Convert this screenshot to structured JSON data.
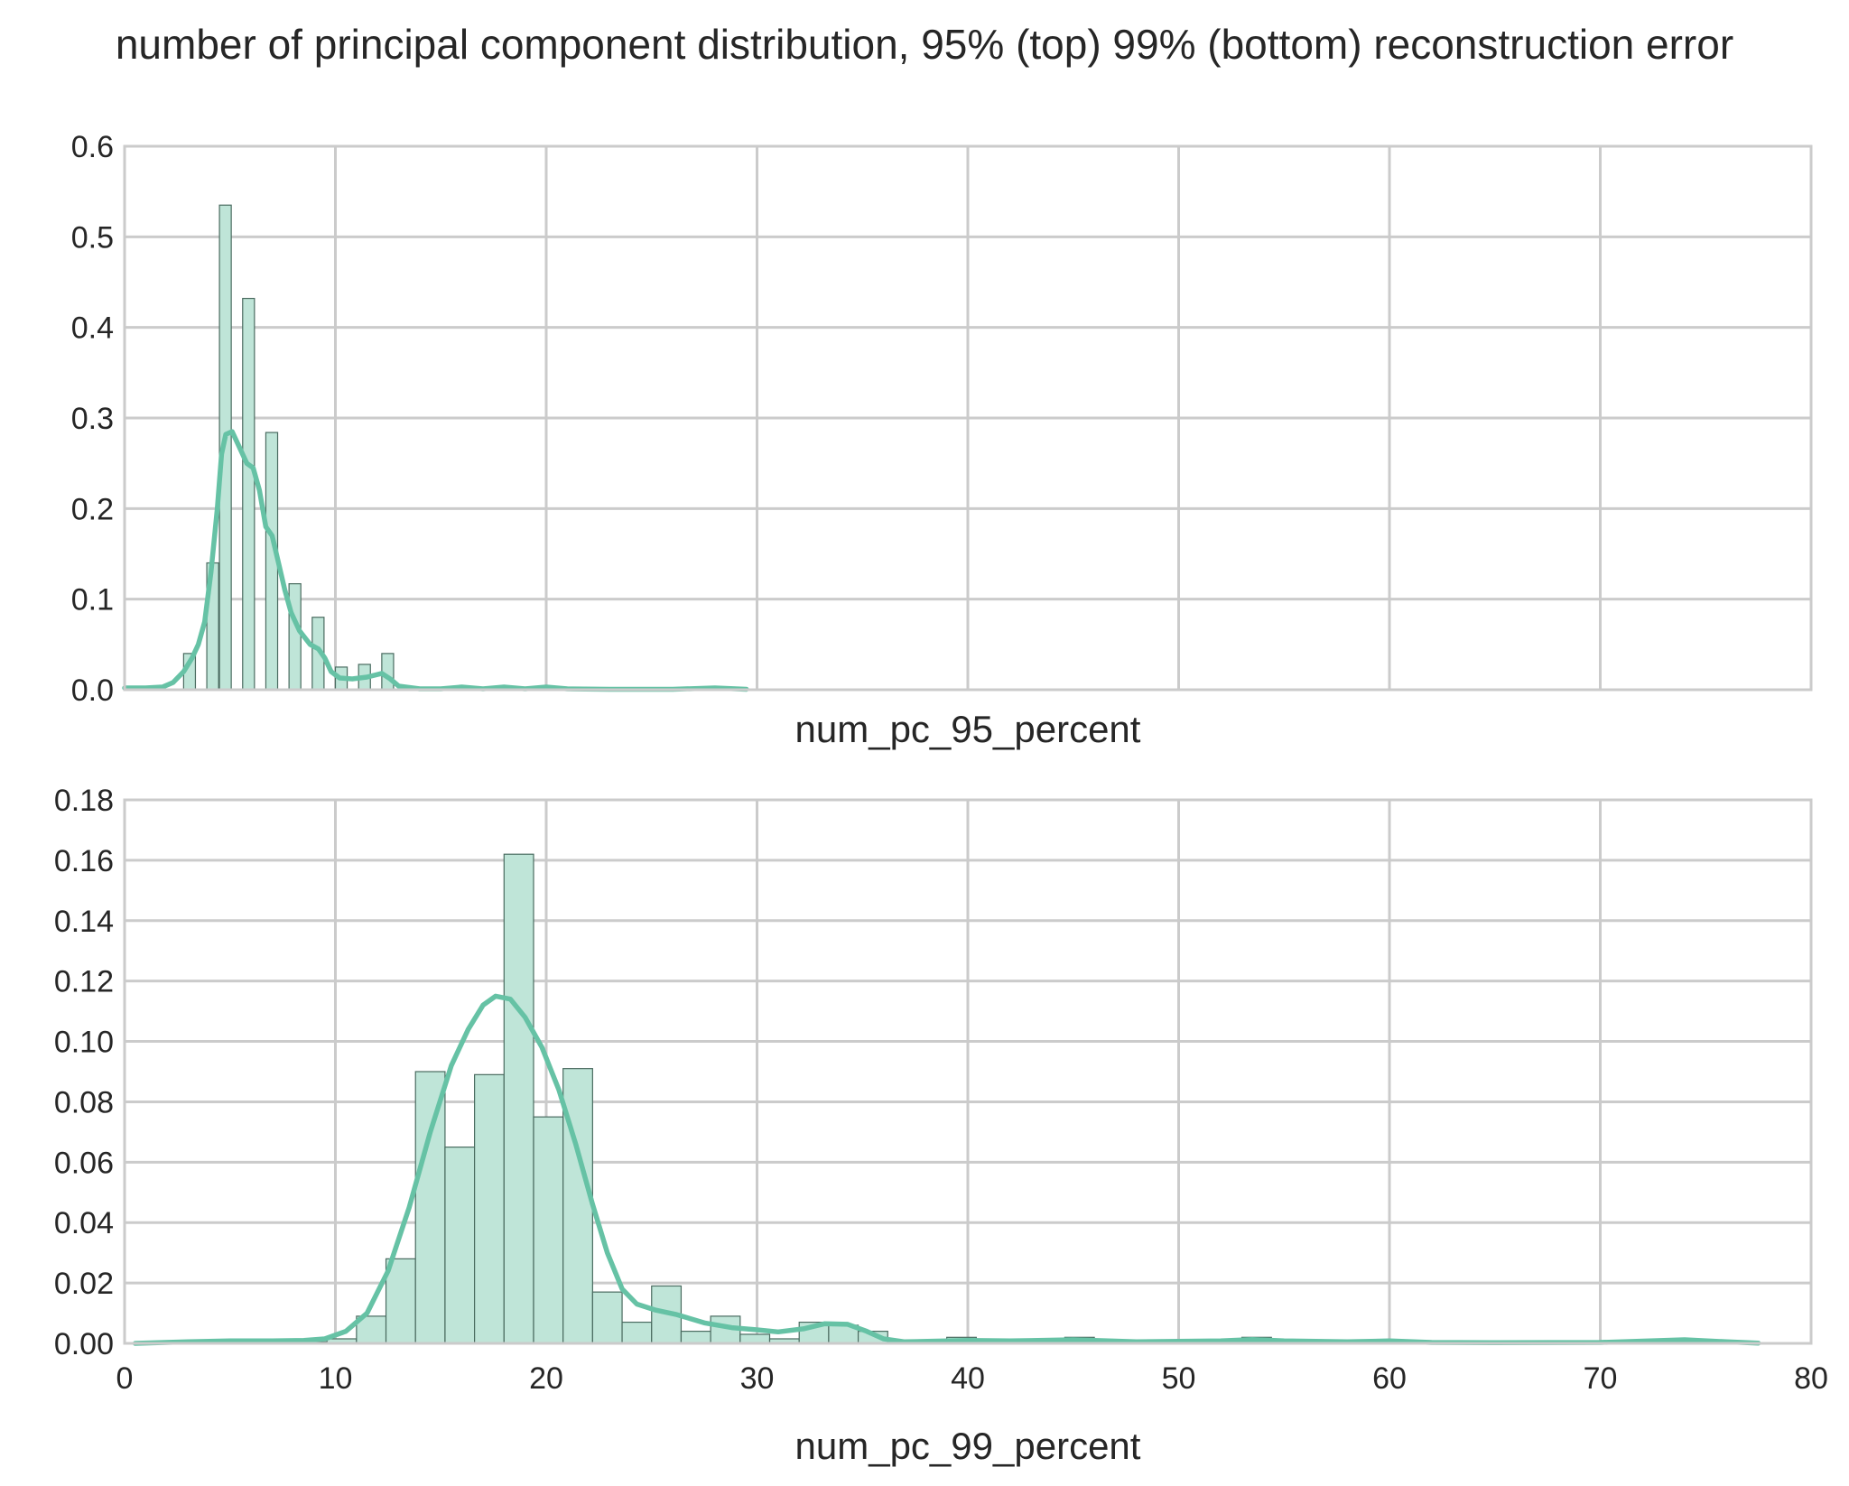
{
  "figure": {
    "title": "number of principal component distribution, 95% (top) 99% (bottom) reconstruction error"
  },
  "colors": {
    "bar_fill": "#bfe5d8",
    "bar_edge": "#4a6b60",
    "kde": "#66c2a5",
    "grid": "#cbcbcb"
  },
  "chart_data": [
    {
      "type": "bar",
      "subtype": "histogram-with-kde",
      "xlabel": "num_pc_95_percent",
      "ylabel": "",
      "xlim": [
        0,
        80
      ],
      "ylim": [
        0,
        0.6
      ],
      "xticks": [
        0,
        10,
        20,
        30,
        40,
        50,
        60,
        70,
        80
      ],
      "yticks": [
        0.0,
        0.1,
        0.2,
        0.3,
        0.4,
        0.5,
        0.6
      ],
      "ytick_labels": [
        "0.0",
        "0.1",
        "0.2",
        "0.3",
        "0.4",
        "0.5",
        "0.6"
      ],
      "show_x_tick_labels": false,
      "grid": true,
      "bin_width": 0.56,
      "bins": [
        [
          2.8,
          0.04
        ],
        [
          3.9,
          0.14
        ],
        [
          4.5,
          0.535
        ],
        [
          5.6,
          0.432
        ],
        [
          6.7,
          0.284
        ],
        [
          7.8,
          0.117
        ],
        [
          8.9,
          0.08
        ],
        [
          10.0,
          0.025
        ],
        [
          11.1,
          0.028
        ],
        [
          12.2,
          0.04
        ],
        [
          18.1,
          0.003
        ],
        [
          19.8,
          0.003
        ],
        [
          27.7,
          0.002
        ]
      ],
      "kde": [
        [
          0,
          0.002
        ],
        [
          1,
          0.002
        ],
        [
          1.8,
          0.003
        ],
        [
          2.3,
          0.008
        ],
        [
          2.8,
          0.02
        ],
        [
          3.2,
          0.035
        ],
        [
          3.5,
          0.05
        ],
        [
          3.8,
          0.075
        ],
        [
          4.1,
          0.13
        ],
        [
          4.4,
          0.2
        ],
        [
          4.6,
          0.26
        ],
        [
          4.8,
          0.282
        ],
        [
          5.1,
          0.285
        ],
        [
          5.4,
          0.27
        ],
        [
          5.8,
          0.25
        ],
        [
          6.1,
          0.245
        ],
        [
          6.4,
          0.22
        ],
        [
          6.7,
          0.18
        ],
        [
          7.0,
          0.17
        ],
        [
          7.3,
          0.14
        ],
        [
          7.6,
          0.11
        ],
        [
          7.9,
          0.085
        ],
        [
          8.3,
          0.065
        ],
        [
          8.8,
          0.05
        ],
        [
          9.2,
          0.045
        ],
        [
          9.5,
          0.035
        ],
        [
          9.8,
          0.02
        ],
        [
          10.2,
          0.013
        ],
        [
          10.8,
          0.012
        ],
        [
          11.5,
          0.014
        ],
        [
          12.2,
          0.018
        ],
        [
          12.6,
          0.012
        ],
        [
          13.0,
          0.004
        ],
        [
          14,
          0.001
        ],
        [
          15,
          0.001
        ],
        [
          16,
          0.003
        ],
        [
          17,
          0.001
        ],
        [
          18,
          0.003
        ],
        [
          19,
          0.001
        ],
        [
          20,
          0.003
        ],
        [
          21,
          0.001
        ],
        [
          23,
          0.0005
        ],
        [
          26,
          0.0005
        ],
        [
          28,
          0.002
        ],
        [
          29.5,
          0.0005
        ]
      ]
    },
    {
      "type": "bar",
      "subtype": "histogram-with-kde",
      "xlabel": "num_pc_99_percent",
      "ylabel": "",
      "xlim": [
        0,
        80
      ],
      "ylim": [
        0,
        0.18
      ],
      "xticks": [
        0,
        10,
        20,
        30,
        40,
        50,
        60,
        70,
        80
      ],
      "xtick_labels": [
        "0",
        "10",
        "20",
        "30",
        "40",
        "50",
        "60",
        "70",
        "80"
      ],
      "yticks": [
        0.0,
        0.02,
        0.04,
        0.06,
        0.08,
        0.1,
        0.12,
        0.14,
        0.16,
        0.18
      ],
      "ytick_labels": [
        "0.00",
        "0.02",
        "0.04",
        "0.06",
        "0.08",
        "0.10",
        "0.12",
        "0.14",
        "0.16",
        "0.18"
      ],
      "show_x_tick_labels": true,
      "grid": true,
      "bin_width": 1.4,
      "bins": [
        [
          8.2,
          0.0005
        ],
        [
          9.6,
          0.0015
        ],
        [
          11.0,
          0.009
        ],
        [
          12.4,
          0.028
        ],
        [
          13.8,
          0.09
        ],
        [
          15.2,
          0.065
        ],
        [
          16.6,
          0.089
        ],
        [
          18.0,
          0.162
        ],
        [
          19.4,
          0.075
        ],
        [
          20.8,
          0.091
        ],
        [
          22.2,
          0.017
        ],
        [
          23.6,
          0.007
        ],
        [
          25.0,
          0.019
        ],
        [
          26.4,
          0.004
        ],
        [
          27.8,
          0.009
        ],
        [
          29.2,
          0.003
        ],
        [
          30.6,
          0.0015
        ],
        [
          32.0,
          0.007
        ],
        [
          33.4,
          0.006
        ],
        [
          34.8,
          0.004
        ],
        [
          39.0,
          0.002
        ],
        [
          44.6,
          0.002
        ],
        [
          53.0,
          0.002
        ]
      ],
      "kde": [
        [
          0.5,
          0.0
        ],
        [
          3,
          0.0005
        ],
        [
          5,
          0.0008
        ],
        [
          7,
          0.0008
        ],
        [
          8.5,
          0.001
        ],
        [
          9.5,
          0.0015
        ],
        [
          10.5,
          0.004
        ],
        [
          11.5,
          0.01
        ],
        [
          12.5,
          0.024
        ],
        [
          13.5,
          0.045
        ],
        [
          14.5,
          0.07
        ],
        [
          15.5,
          0.092
        ],
        [
          16.3,
          0.104
        ],
        [
          17.0,
          0.112
        ],
        [
          17.6,
          0.115
        ],
        [
          18.3,
          0.114
        ],
        [
          19.0,
          0.108
        ],
        [
          19.8,
          0.098
        ],
        [
          20.6,
          0.084
        ],
        [
          21.4,
          0.066
        ],
        [
          22.2,
          0.046
        ],
        [
          22.9,
          0.03
        ],
        [
          23.6,
          0.018
        ],
        [
          24.3,
          0.013
        ],
        [
          25.2,
          0.011
        ],
        [
          26.2,
          0.0095
        ],
        [
          27.5,
          0.0068
        ],
        [
          28.8,
          0.0052
        ],
        [
          30.0,
          0.0045
        ],
        [
          31.0,
          0.0038
        ],
        [
          32.2,
          0.0048
        ],
        [
          33.2,
          0.0065
        ],
        [
          34.3,
          0.0063
        ],
        [
          35.2,
          0.004
        ],
        [
          36.0,
          0.0015
        ],
        [
          37.0,
          0.0005
        ],
        [
          40,
          0.001
        ],
        [
          42,
          0.0008
        ],
        [
          45,
          0.0012
        ],
        [
          48,
          0.0005
        ],
        [
          50,
          0.0007
        ],
        [
          52,
          0.0008
        ],
        [
          53.5,
          0.0013
        ],
        [
          55,
          0.0008
        ],
        [
          58,
          0.0005
        ],
        [
          60,
          0.0008
        ],
        [
          62,
          0.0003
        ],
        [
          65,
          0.0002
        ],
        [
          70,
          0.0003
        ],
        [
          74,
          0.0012
        ],
        [
          76,
          0.0005
        ],
        [
          77.5,
          0.0001
        ]
      ]
    }
  ]
}
